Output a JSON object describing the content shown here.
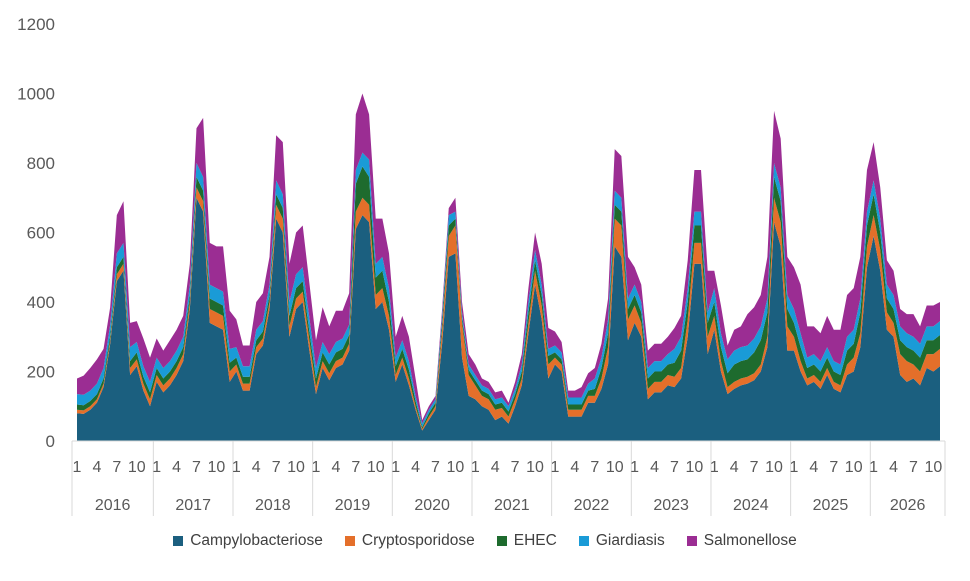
{
  "chart_data": {
    "type": "area",
    "stacked": true,
    "title": "",
    "xlabel": "",
    "ylabel": "",
    "ylim": [
      0,
      1200
    ],
    "yticks": [
      0,
      200,
      400,
      600,
      800,
      1000,
      1200
    ],
    "grid": false,
    "legend_position": "bottom",
    "years": [
      "2016",
      "2017",
      "2018",
      "2019",
      "2020",
      "2021",
      "2022",
      "2023",
      "2024",
      "2025",
      "2026"
    ],
    "month_tick_labels": [
      "1",
      "4",
      "7",
      "10"
    ],
    "series": [
      {
        "name": "Campylobacteriose",
        "color": "#1b5f7f",
        "values": [
          80,
          78,
          90,
          110,
          155,
          280,
          460,
          490,
          190,
          215,
          145,
          100,
          170,
          140,
          160,
          190,
          230,
          380,
          700,
          660,
          340,
          330,
          320,
          170,
          200,
          145,
          145,
          250,
          275,
          380,
          640,
          600,
          300,
          380,
          400,
          260,
          135,
          210,
          175,
          210,
          220,
          260,
          610,
          650,
          630,
          380,
          400,
          320,
          170,
          220,
          160,
          90,
          30,
          60,
          90,
          280,
          530,
          540,
          240,
          130,
          120,
          100,
          90,
          60,
          70,
          50,
          100,
          160,
          310,
          450,
          350,
          180,
          220,
          200,
          70,
          70,
          70,
          110,
          110,
          150,
          220,
          560,
          530,
          290,
          340,
          300,
          120,
          140,
          140,
          160,
          155,
          180,
          300,
          510,
          510,
          250,
          320,
          200,
          135,
          150,
          160,
          165,
          175,
          200,
          270,
          630,
          560,
          260,
          260,
          200,
          160,
          170,
          150,
          190,
          150,
          140,
          190,
          200,
          270,
          500,
          590,
          490,
          320,
          300,
          190,
          170,
          180,
          160,
          210,
          200,
          215
        ]
      },
      {
        "name": "Cryptosporidose",
        "color": "#e46f2a",
        "values": [
          10,
          10,
          10,
          10,
          10,
          10,
          20,
          20,
          20,
          20,
          20,
          20,
          20,
          20,
          20,
          20,
          20,
          20,
          30,
          30,
          40,
          40,
          40,
          30,
          20,
          20,
          20,
          20,
          20,
          20,
          40,
          40,
          30,
          30,
          30,
          30,
          20,
          20,
          20,
          20,
          20,
          20,
          50,
          50,
          50,
          40,
          40,
          40,
          20,
          20,
          20,
          10,
          5,
          10,
          10,
          40,
          60,
          80,
          100,
          60,
          40,
          30,
          30,
          30,
          25,
          20,
          20,
          20,
          30,
          40,
          40,
          40,
          20,
          20,
          20,
          20,
          20,
          20,
          20,
          30,
          50,
          80,
          90,
          60,
          50,
          40,
          30,
          30,
          30,
          30,
          30,
          30,
          50,
          60,
          60,
          50,
          40,
          30,
          20,
          20,
          20,
          20,
          20,
          20,
          30,
          70,
          70,
          70,
          40,
          30,
          20,
          20,
          20,
          20,
          20,
          20,
          30,
          40,
          40,
          60,
          60,
          60,
          50,
          40,
          60,
          60,
          40,
          40,
          40,
          50,
          50
        ]
      },
      {
        "name": "EHEC",
        "color": "#1e6b2e",
        "values": [
          15,
          15,
          15,
          15,
          15,
          15,
          20,
          20,
          20,
          20,
          20,
          20,
          20,
          20,
          20,
          20,
          20,
          20,
          30,
          30,
          30,
          30,
          30,
          25,
          20,
          20,
          20,
          20,
          20,
          20,
          30,
          30,
          30,
          30,
          30,
          25,
          25,
          25,
          25,
          25,
          25,
          25,
          80,
          90,
          80,
          50,
          50,
          40,
          25,
          25,
          25,
          15,
          5,
          10,
          10,
          20,
          30,
          20,
          15,
          15,
          15,
          15,
          15,
          15,
          15,
          15,
          15,
          20,
          30,
          30,
          30,
          25,
          15,
          15,
          15,
          15,
          15,
          15,
          20,
          30,
          40,
          40,
          40,
          30,
          30,
          30,
          30,
          30,
          30,
          30,
          40,
          50,
          50,
          50,
          50,
          40,
          40,
          40,
          40,
          50,
          50,
          50,
          60,
          70,
          70,
          60,
          60,
          50,
          40,
          40,
          30,
          30,
          30,
          30,
          30,
          30,
          40,
          40,
          60,
          60,
          60,
          50,
          40,
          40,
          40,
          40,
          40,
          40,
          40,
          40,
          40
        ]
      },
      {
        "name": "Giardiasis",
        "color": "#1a9bd7",
        "values": [
          30,
          30,
          30,
          30,
          30,
          30,
          40,
          40,
          40,
          30,
          30,
          30,
          30,
          30,
          30,
          30,
          30,
          30,
          40,
          40,
          40,
          40,
          40,
          40,
          30,
          30,
          30,
          30,
          30,
          30,
          40,
          40,
          40,
          40,
          40,
          40,
          30,
          30,
          30,
          30,
          30,
          30,
          40,
          40,
          50,
          40,
          40,
          40,
          25,
          25,
          25,
          15,
          10,
          10,
          10,
          20,
          30,
          20,
          15,
          15,
          15,
          15,
          15,
          15,
          15,
          15,
          15,
          20,
          30,
          30,
          30,
          20,
          20,
          20,
          20,
          20,
          20,
          20,
          30,
          30,
          40,
          40,
          40,
          30,
          30,
          30,
          30,
          30,
          30,
          30,
          40,
          40,
          40,
          40,
          40,
          30,
          40,
          40,
          40,
          40,
          40,
          40,
          40,
          40,
          40,
          40,
          40,
          40,
          40,
          40,
          30,
          30,
          30,
          30,
          30,
          30,
          40,
          40,
          40,
          40,
          40,
          40,
          40,
          40,
          40,
          40,
          40,
          40,
          40,
          40,
          40
        ]
      },
      {
        "name": "Salmonellose",
        "color": "#9b2d93",
        "values": [
          45,
          55,
          65,
          70,
          55,
          50,
          110,
          120,
          70,
          60,
          80,
          70,
          55,
          50,
          60,
          60,
          60,
          60,
          100,
          170,
          120,
          120,
          130,
          110,
          80,
          60,
          60,
          80,
          80,
          80,
          130,
          150,
          110,
          120,
          120,
          100,
          80,
          100,
          80,
          90,
          80,
          90,
          160,
          170,
          130,
          130,
          110,
          100,
          60,
          70,
          70,
          50,
          10,
          10,
          10,
          20,
          20,
          40,
          30,
          30,
          30,
          20,
          20,
          20,
          20,
          10,
          20,
          30,
          40,
          50,
          60,
          60,
          40,
          30,
          20,
          20,
          30,
          30,
          30,
          40,
          60,
          120,
          120,
          120,
          50,
          50,
          50,
          50,
          50,
          50,
          60,
          60,
          80,
          120,
          120,
          120,
          50,
          80,
          40,
          60,
          60,
          90,
          90,
          90,
          120,
          150,
          140,
          110,
          120,
          140,
          90,
          80,
          80,
          90,
          90,
          100,
          120,
          120,
          120,
          120,
          110,
          90,
          70,
          70,
          50,
          55,
          65,
          50,
          60,
          60,
          55
        ]
      }
    ]
  }
}
